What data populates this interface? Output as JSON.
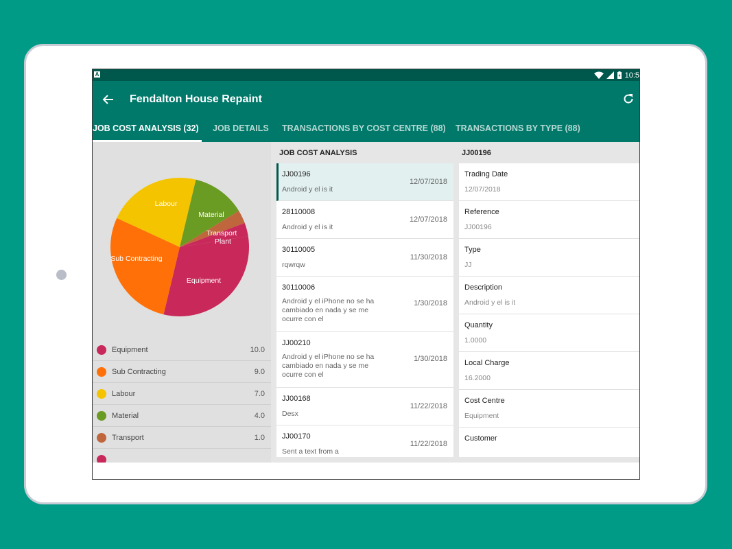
{
  "status": {
    "time": "10:5"
  },
  "appbar": {
    "title": "Fendalton House Repaint"
  },
  "tabs": [
    {
      "label": "JOB COST ANALYSIS (32)"
    },
    {
      "label": "JOB DETAILS"
    },
    {
      "label": "TRANSACTIONS BY COST CENTRE (88)"
    },
    {
      "label": "TRANSACTIONS BY TYPE (88)"
    }
  ],
  "chart_data": {
    "type": "pie",
    "slices": [
      {
        "label": "Equipment",
        "value": 10.0,
        "color": "#c8285a"
      },
      {
        "label": "Sub Contracting",
        "value": 9.0,
        "color": "#ff7008"
      },
      {
        "label": "Labour",
        "value": 7.0,
        "color": "#f4c400"
      },
      {
        "label": "Material",
        "value": 4.0,
        "color": "#6a9b22"
      },
      {
        "label": "Transport",
        "value": 1.0,
        "color": "#c0663c"
      },
      {
        "label": "Plant",
        "value": 1.0,
        "color": "#c8285a"
      }
    ]
  },
  "legend": [
    {
      "label": "Equipment",
      "value": "10.0",
      "color": "#c8285a"
    },
    {
      "label": "Sub Contracting",
      "value": "9.0",
      "color": "#ff7008"
    },
    {
      "label": "Labour",
      "value": "7.0",
      "color": "#f4c400"
    },
    {
      "label": "Material",
      "value": "4.0",
      "color": "#6a9b22"
    },
    {
      "label": "Transport",
      "value": "1.0",
      "color": "#c0663c"
    },
    {
      "label": "",
      "value": "",
      "color": "#c8285a"
    }
  ],
  "list": {
    "header": "JOB COST ANALYSIS",
    "items": [
      {
        "code": "JJ00196",
        "desc": "Android y el is it",
        "date": "12/07/2018",
        "selected": true
      },
      {
        "code": "28110008",
        "desc": "Android y el is it",
        "date": "12/07/2018"
      },
      {
        "code": "30110005",
        "desc": "rqwrqw",
        "date": "11/30/2018"
      },
      {
        "code": "30110006",
        "desc": "Android y el iPhone no se ha cambiado en nada y se me ocurre con el",
        "date": "1/30/2018"
      },
      {
        "code": "JJ00210",
        "desc": "Android y el iPhone no se ha cambiado en nada y se me ocurre con el",
        "date": "1/30/2018"
      },
      {
        "code": "JJ00168",
        "desc": "Desx",
        "date": "11/22/2018"
      },
      {
        "code": "JJ00170",
        "desc": "Sent a text from a",
        "date": "11/22/2018"
      }
    ]
  },
  "details": {
    "header": "JJ00196",
    "fields": [
      {
        "label": "Trading Date",
        "value": "12/07/2018"
      },
      {
        "label": "Reference",
        "value": "JJ00196"
      },
      {
        "label": "Type",
        "value": "JJ"
      },
      {
        "label": "Description",
        "value": "Android y el is it"
      },
      {
        "label": "Quantity",
        "value": "1.0000"
      },
      {
        "label": "Local Charge",
        "value": "16.2000"
      },
      {
        "label": "Cost Centre",
        "value": "Equipment"
      },
      {
        "label": "Customer",
        "value": ""
      }
    ]
  }
}
